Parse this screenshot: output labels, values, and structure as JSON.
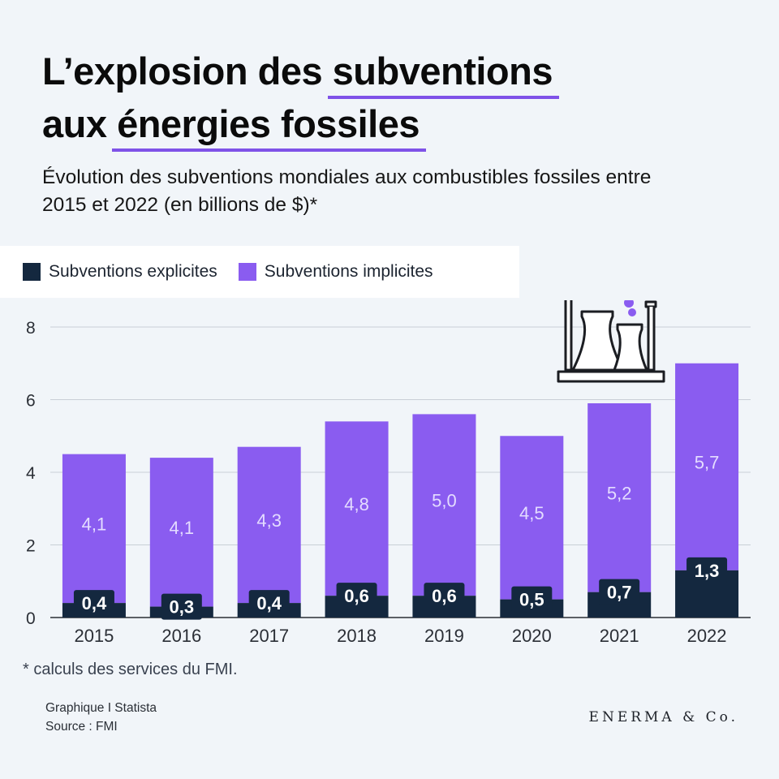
{
  "title": {
    "line1_prefix": "L’explosion des",
    "line1_highlight": "subventions",
    "line2_prefix": "aux",
    "line2_highlight": "énergies fossiles"
  },
  "subtitle": "Évolution des subventions mondiales aux combustibles fossiles entre 2015 et 2022 (en billions de $)*",
  "legend": {
    "explicit": "Subventions explicites",
    "implicit": "Subventions implicites"
  },
  "footnote": "* calculs des services du FMI.",
  "credit": {
    "line1": "Graphique I Statista",
    "line2": "Source : FMI"
  },
  "brand": "ENERMA & Co.",
  "colors": {
    "explicit": "#14283f",
    "implicit": "#8a5cf0",
    "implicit_label": "#e4dcff",
    "grid": "#c9cfd6",
    "axis_text": "#2b2f36"
  },
  "icon": "power-plant-cooling-towers-icon",
  "chart_data": {
    "type": "bar",
    "stacked": true,
    "title": "L’explosion des subventions aux énergies fossiles",
    "xlabel": "",
    "ylabel": "billions de $",
    "ylim": [
      0,
      8
    ],
    "yticks": [
      "0",
      "2",
      "4",
      "6",
      "8"
    ],
    "grid": true,
    "legend_position": "top-left",
    "categories": [
      "2015",
      "2016",
      "2017",
      "2018",
      "2019",
      "2020",
      "2021",
      "2022"
    ],
    "series": [
      {
        "name": "Subventions explicites",
        "values": [
          0.4,
          0.3,
          0.4,
          0.6,
          0.6,
          0.5,
          0.7,
          1.3
        ],
        "labels": [
          "0,4",
          "0,3",
          "0,4",
          "0,6",
          "0,6",
          "0,5",
          "0,7",
          "1,3"
        ]
      },
      {
        "name": "Subventions implicites",
        "values": [
          4.1,
          4.1,
          4.3,
          4.8,
          5.0,
          4.5,
          5.2,
          5.7
        ],
        "labels": [
          "4,1",
          "4,1",
          "4,3",
          "4,8",
          "5,0",
          "4,5",
          "5,2",
          "5,7"
        ]
      }
    ]
  }
}
